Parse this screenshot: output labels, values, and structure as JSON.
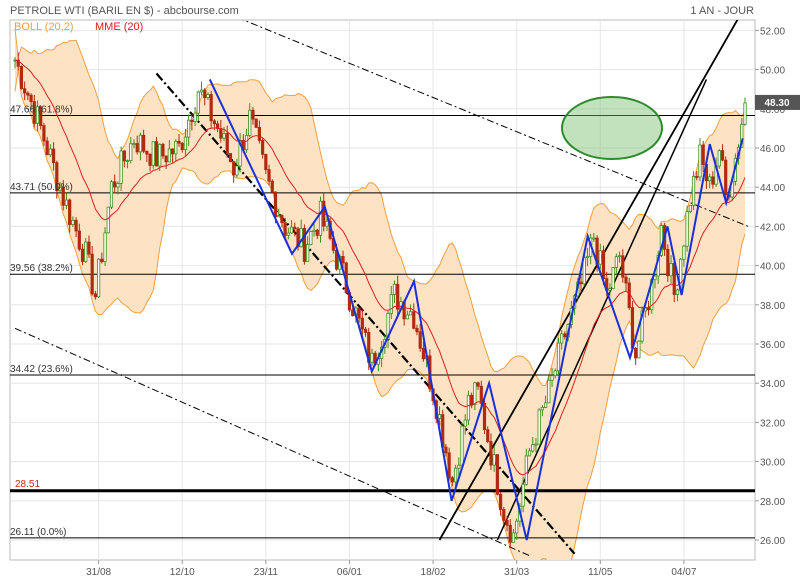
{
  "header": {
    "title": "PETROLE WTI (BARIL EN $) - abcbourse.com",
    "period": "1 AN - JOUR"
  },
  "legend": {
    "boll": "BOLL (20,2)",
    "mme": "MME (20)"
  },
  "colors": {
    "bollinger_fill": "#fde2c4",
    "bollinger_line": "#f0a040",
    "mme_line": "#e02020",
    "trend_zigzag": "#1a2fd8",
    "candle_up": "#3f8f20",
    "candle_down": "#b02a10",
    "ellipse": "#2e8b2e",
    "price_tag": "#555555"
  },
  "chart_data": {
    "type": "line",
    "title": "PETROLE WTI (BARIL EN $)",
    "ylim": [
      25.5,
      53
    ],
    "yticks": [
      "52.00",
      "50.00",
      "48.00",
      "46.00",
      "44.00",
      "42.00",
      "40.00",
      "38.00",
      "36.00",
      "34.00",
      "32.00",
      "30.00",
      "28.00",
      "26.00"
    ],
    "xticks": [
      "31/08",
      "12/10",
      "23/11",
      "06/01",
      "18/02",
      "31/03",
      "11/05",
      "04/07"
    ],
    "last_price": "48.30",
    "fibonacci": [
      {
        "level": 47.66,
        "label": "47.66 (61.8%)"
      },
      {
        "level": 43.71,
        "label": "43.71 (50.0%)"
      },
      {
        "level": 39.56,
        "label": "39.56 (38.2%)"
      },
      {
        "level": 34.42,
        "label": "34.42 (23.6%)"
      },
      {
        "level": 26.11,
        "label": "26.11 (0.0%)"
      }
    ],
    "support": {
      "level": 28.51,
      "label": "28.51"
    },
    "price_anchors": [
      [
        0,
        50.5
      ],
      [
        7,
        47.5
      ],
      [
        15,
        43.5
      ],
      [
        22,
        40.5
      ],
      [
        25,
        38.5
      ],
      [
        30,
        44.0
      ],
      [
        37,
        46.5
      ],
      [
        44,
        45.5
      ],
      [
        51,
        46.0
      ],
      [
        57,
        49.0
      ],
      [
        63,
        47.0
      ],
      [
        68,
        45.0
      ],
      [
        73,
        47.5
      ],
      [
        78,
        44.5
      ],
      [
        84,
        42.0
      ],
      [
        90,
        41.0
      ],
      [
        95,
        42.5
      ],
      [
        101,
        40.0
      ],
      [
        107,
        37.0
      ],
      [
        111,
        35.0
      ],
      [
        118,
        38.5
      ],
      [
        124,
        37.5
      ],
      [
        131,
        33.0
      ],
      [
        136,
        29.0
      ],
      [
        141,
        33.0
      ],
      [
        144,
        33.5
      ],
      [
        148,
        30.5
      ],
      [
        152,
        27.5
      ],
      [
        155,
        26.2
      ],
      [
        160,
        30.5
      ],
      [
        166,
        33.5
      ],
      [
        171,
        36.5
      ],
      [
        176,
        39.0
      ],
      [
        180,
        41.5
      ],
      [
        184,
        38.5
      ],
      [
        188,
        40.5
      ],
      [
        193,
        35.5
      ],
      [
        198,
        39.0
      ],
      [
        201,
        42.0
      ],
      [
        205,
        38.5
      ],
      [
        210,
        43.5
      ],
      [
        213,
        45.5
      ],
      [
        216,
        44.0
      ],
      [
        219,
        46.0
      ],
      [
        221,
        43.5
      ],
      [
        224,
        45.5
      ],
      [
        227,
        48.3
      ]
    ],
    "zigzag": [
      [
        83,
        49.5
      ],
      [
        118,
        40.6
      ],
      [
        132,
        43.0
      ],
      [
        152,
        34.6
      ],
      [
        170,
        39.2
      ],
      [
        186,
        28.0
      ],
      [
        202,
        34.0
      ],
      [
        218,
        26.0
      ],
      [
        244,
        41.5
      ],
      [
        262,
        35.3
      ],
      [
        278,
        42.0
      ],
      [
        284,
        38.5
      ],
      [
        296,
        46.2
      ],
      [
        303,
        43.2
      ],
      [
        310,
        46.5
      ]
    ],
    "candles": 228,
    "xtick_index": [
      26,
      52,
      78,
      104,
      130,
      156,
      182,
      208
    ]
  }
}
